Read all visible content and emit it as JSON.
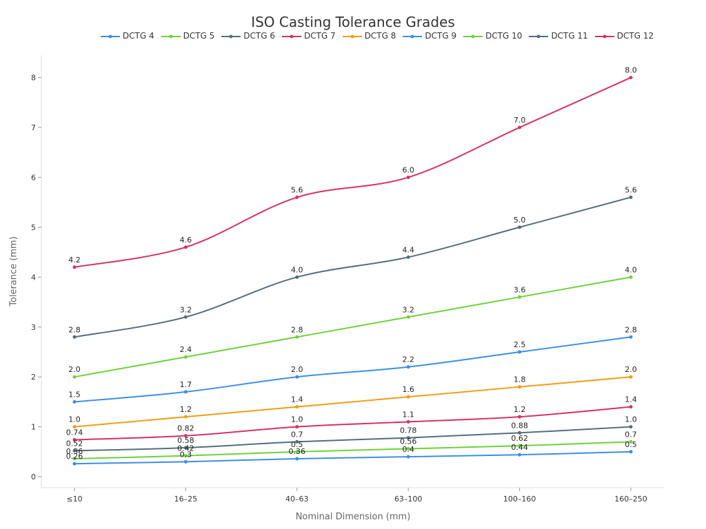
{
  "chart_data": {
    "type": "line",
    "title": "ISO Casting Tolerance Grades",
    "xlabel": "Nominal Dimension (mm)",
    "ylabel": "Tolerance (mm)",
    "categories": [
      "≤10",
      "16–25",
      "40–63",
      "63–100",
      "100–160",
      "160–250"
    ],
    "ylim": [
      -0.22,
      8.45
    ],
    "yticks": [
      0,
      1,
      2,
      3,
      4,
      5,
      6,
      7,
      8
    ],
    "legend_position": "top",
    "grid": false,
    "series": [
      {
        "name": "DCTG 4",
        "color": "#3a8ee6",
        "values": [
          0.26,
          0.3,
          0.36,
          0.4,
          0.44,
          0.5
        ],
        "labels": [
          "0.26",
          "0.3",
          "0.36",
          "0.4",
          "0.44",
          "0.5"
        ]
      },
      {
        "name": "DCTG 5",
        "color": "#6dd13a",
        "values": [
          0.36,
          0.42,
          0.5,
          0.56,
          0.62,
          0.7
        ],
        "labels": [
          "0.36",
          "0.42",
          "0.5",
          "0.56",
          "0.62",
          "0.7"
        ]
      },
      {
        "name": "DCTG 6",
        "color": "#546e7a",
        "values": [
          0.52,
          0.58,
          0.7,
          0.78,
          0.88,
          1.0
        ],
        "labels": [
          "0.52",
          "0.58",
          "0.7",
          "0.78",
          "0.88",
          "1.0"
        ]
      },
      {
        "name": "DCTG 7",
        "color": "#d63165",
        "values": [
          0.74,
          0.82,
          1.0,
          1.1,
          1.2,
          1.4
        ],
        "labels": [
          "0.74",
          "0.82",
          "1.0",
          "1.1",
          "1.2",
          "1.4"
        ]
      },
      {
        "name": "DCTG 8",
        "color": "#f39c12",
        "values": [
          1.0,
          1.2,
          1.4,
          1.6,
          1.8,
          2.0
        ],
        "labels": [
          "1.0",
          "1.2",
          "1.4",
          "1.6",
          "1.8",
          "2.0"
        ]
      },
      {
        "name": "DCTG 9",
        "color": "#3a8ee6",
        "values": [
          1.5,
          1.7,
          2.0,
          2.2,
          2.5,
          2.8
        ],
        "labels": [
          "1.5",
          "1.7",
          "2.0",
          "2.2",
          "2.5",
          "2.8"
        ]
      },
      {
        "name": "DCTG 10",
        "color": "#6dd13a",
        "values": [
          2.0,
          2.4,
          2.8,
          3.2,
          3.6,
          4.0
        ],
        "labels": [
          "2.0",
          "2.4",
          "2.8",
          "3.2",
          "3.6",
          "4.0"
        ]
      },
      {
        "name": "DCTG 11",
        "color": "#546e7a",
        "values": [
          2.8,
          3.2,
          4.0,
          4.4,
          5.0,
          5.6
        ],
        "labels": [
          "2.8",
          "3.2",
          "4.0",
          "4.4",
          "5.0",
          "5.6"
        ]
      },
      {
        "name": "DCTG 12",
        "color": "#d63165",
        "values": [
          4.2,
          4.6,
          5.6,
          6.0,
          7.0,
          8.0
        ],
        "labels": [
          "4.2",
          "4.6",
          "5.6",
          "6.0",
          "7.0",
          "8.0"
        ]
      }
    ]
  }
}
